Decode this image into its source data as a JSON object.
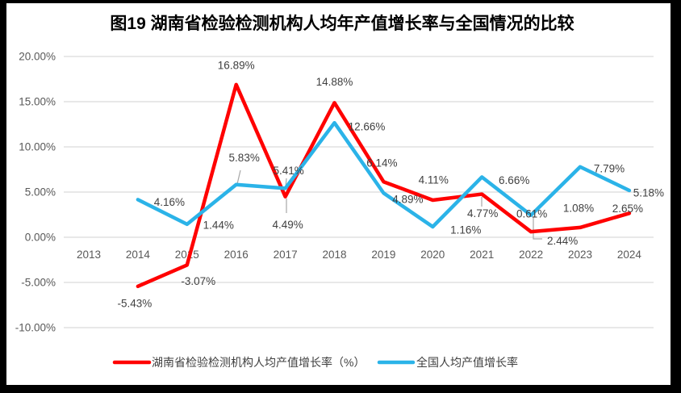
{
  "title": {
    "text": "图19 湖南省检验检测机构人均年产值增长率与全国情况的比较"
  },
  "chart_data": {
    "type": "line",
    "categories": [
      "2013",
      "2014",
      "2015",
      "2016",
      "2017",
      "2018",
      "2019",
      "2020",
      "2021",
      "2022",
      "2023",
      "2024"
    ],
    "series": [
      {
        "name": "湖南省检验检测机构人均产值增长率（%）",
        "color": "#FF0000",
        "values": [
          null,
          -5.43,
          -3.07,
          16.89,
          4.49,
          14.88,
          6.14,
          4.11,
          4.77,
          0.61,
          1.08,
          2.65
        ],
        "labels": [
          null,
          "-5.43%",
          "-3.07%",
          "16.89%",
          "4.49%",
          "14.88%",
          "6.14%",
          "4.11%",
          "4.77%",
          "0.61%",
          "1.08%",
          "2.65%"
        ]
      },
      {
        "name": "全国人均产值增长率",
        "color": "#2BB3E8",
        "values": [
          null,
          4.16,
          1.44,
          5.83,
          5.41,
          12.66,
          4.89,
          1.16,
          6.66,
          2.44,
          7.79,
          5.18
        ],
        "labels": [
          null,
          "4.16%",
          "1.44%",
          "5.83%",
          "5.41%",
          "12.66%",
          "4.89%",
          "1.16%",
          "6.66%",
          "2.44%",
          "7.79%",
          "5.18%"
        ]
      }
    ],
    "y_ticks": [
      "20.00%",
      "15.00%",
      "10.00%",
      "5.00%",
      "0.00%",
      "-5.00%",
      "-10.00%"
    ],
    "y_tick_values": [
      20,
      15,
      10,
      5,
      0,
      -5,
      -10
    ],
    "ylim": [
      -10,
      20
    ],
    "grid": "horizontal-only",
    "legend_position": "bottom",
    "colors": {
      "gridline": "#D9D9D9",
      "axis_text": "#595959",
      "label_text": "#404040",
      "leader_line": "#A6A6A6",
      "background": "#FFFFFF",
      "frame": "#000000"
    }
  }
}
